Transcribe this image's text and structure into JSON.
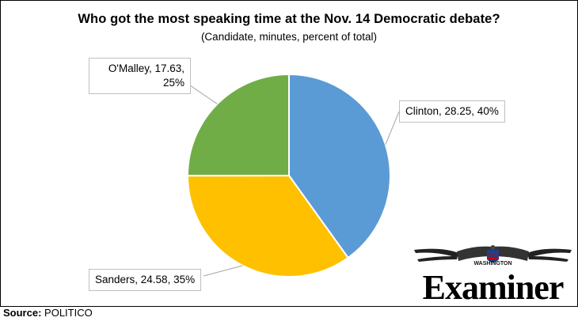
{
  "chart_data": {
    "type": "pie",
    "title": "Who got the most speaking time at the Nov. 14 Democratic debate?",
    "subtitle": "(Candidate, minutes, percent of total)",
    "slices": [
      {
        "name": "Clinton",
        "value": 28.25,
        "percent": 40,
        "label": "Clinton, 28.25, 40%",
        "color": "#5b9bd5"
      },
      {
        "name": "Sanders",
        "value": 24.58,
        "percent": 35,
        "label": "Sanders, 24.58, 35%",
        "color": "#ffc000"
      },
      {
        "name": "O'Malley",
        "value": 17.63,
        "percent": 25,
        "label": "O'Malley, 17.63, 25%",
        "color": "#70ad47"
      }
    ]
  },
  "source": {
    "prefix": "Source:",
    "text": "POLITICO"
  },
  "logo": {
    "top": "WASHINGTON",
    "word": "Examiner"
  },
  "colors": {
    "leader": "#a6a6a6",
    "callout_border": "#bfbfbf"
  }
}
